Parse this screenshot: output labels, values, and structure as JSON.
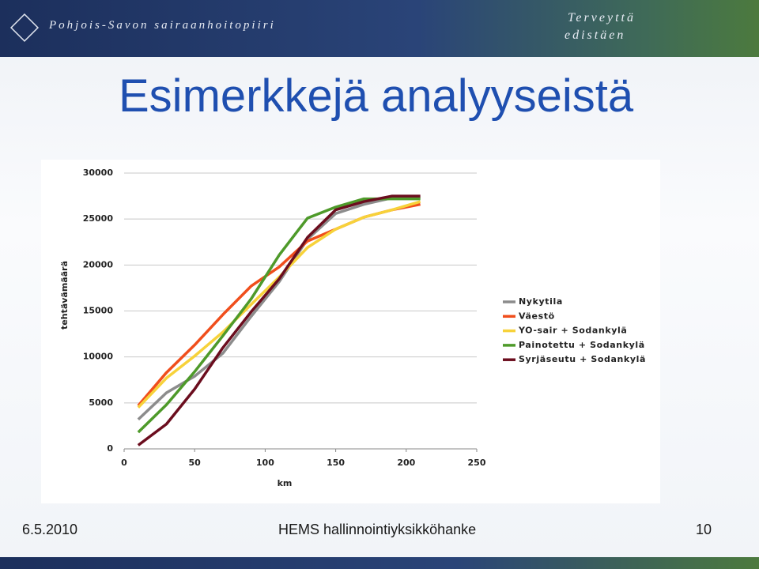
{
  "header": {
    "organization": "Pohjois-Savon sairaanhoitopiiri",
    "slogan": [
      "Terveyttä",
      "edistäen"
    ]
  },
  "slide": {
    "title": "Esimerkkejä analyyseistä"
  },
  "footer": {
    "date": "6.5.2010",
    "project": "HEMS hallinnointiyksikköhanke",
    "page": "10"
  },
  "chart_data": {
    "type": "line",
    "x_label": "km",
    "y_label": "tehtävämäärä",
    "x": [
      10,
      30,
      50,
      70,
      90,
      110,
      130,
      150,
      170,
      190,
      210
    ],
    "xlim": [
      0,
      250
    ],
    "xticks": [
      0,
      50,
      100,
      150,
      200,
      250
    ],
    "ylim": [
      0,
      30000
    ],
    "yticks": [
      0,
      5000,
      10000,
      15000,
      20000,
      25000,
      30000
    ],
    "grid": true,
    "legend": "right",
    "series": [
      {
        "name": "Nykytila",
        "color": "#8c8c8c",
        "values": [
          3200,
          6100,
          7900,
          10400,
          14400,
          18200,
          22800,
          25600,
          26600,
          27300,
          27300
        ]
      },
      {
        "name": "Väestö",
        "color": "#f04e1c",
        "values": [
          4700,
          8300,
          11300,
          14600,
          17700,
          19800,
          22600,
          23900,
          25200,
          26000,
          26600
        ]
      },
      {
        "name": "YO-sair + Sodankylä",
        "color": "#f7d23a",
        "values": [
          4500,
          7700,
          10100,
          12700,
          15700,
          18700,
          21900,
          23900,
          25200,
          26000,
          26900
        ]
      },
      {
        "name": "Painotettu + Sodankylä",
        "color": "#4e9a2a",
        "values": [
          1800,
          4800,
          8400,
          12300,
          16300,
          21100,
          25100,
          26300,
          27200,
          27200,
          27200
        ]
      },
      {
        "name": "Syrjäseutu + Sodankylä",
        "color": "#6b0d1e",
        "values": [
          400,
          2700,
          6500,
          11000,
          14900,
          18500,
          23000,
          26000,
          26900,
          27500,
          27500
        ]
      }
    ]
  }
}
